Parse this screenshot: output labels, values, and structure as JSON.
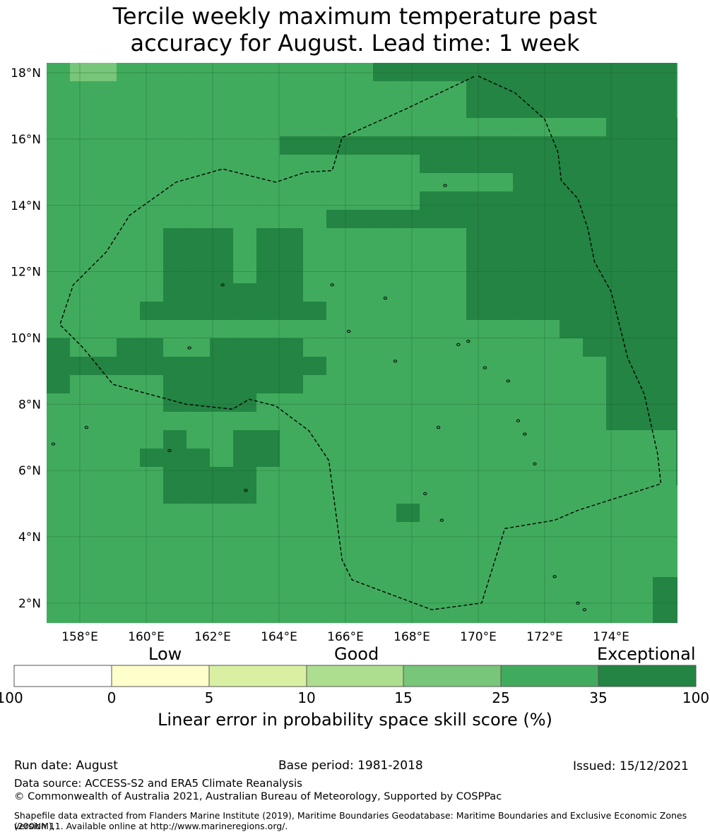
{
  "title": {
    "line1": "Tercile weekly maximum temperature past",
    "line2": "accuracy for August. Lead time: 1 week"
  },
  "map": {
    "lon_range": [
      157,
      176
    ],
    "lat_range": [
      1.4,
      18.3
    ],
    "lon_ticks": [
      {
        "value": 158,
        "label": "158°E"
      },
      {
        "value": 160,
        "label": "160°E"
      },
      {
        "value": 162,
        "label": "162°E"
      },
      {
        "value": 164,
        "label": "164°E"
      },
      {
        "value": 166,
        "label": "166°E"
      },
      {
        "value": 168,
        "label": "168°E"
      },
      {
        "value": 170,
        "label": "170°E"
      },
      {
        "value": 172,
        "label": "172°E"
      },
      {
        "value": 174,
        "label": "174°E"
      }
    ],
    "lat_ticks": [
      {
        "value": 18,
        "label": "18°N"
      },
      {
        "value": 16,
        "label": "16°N"
      },
      {
        "value": 14,
        "label": "14°N"
      },
      {
        "value": 12,
        "label": "12°N"
      },
      {
        "value": 10,
        "label": "10°N"
      },
      {
        "value": 8,
        "label": "8°N"
      },
      {
        "value": 6,
        "label": "6°N"
      },
      {
        "value": 4,
        "label": "4°N"
      },
      {
        "value": 2,
        "label": "2°N"
      }
    ],
    "grid_cell_degrees": 0.83,
    "grid_rows_north_to_south": [
      "BAABBBBBCBBBBBDDDDDDDDDDDDD",
      "BBBBBBBCBBBBBBBBBCDDDDDDDDD",
      "BBBBBBBBBBBBBBBBBBDDDDDDDDD",
      "BBBBBBBBBBBBBBBBBBBCCCCCDDDD",
      "BBBBBBBBBBDDDDDDDDDDDDDDDDDD",
      "BBBBBBBBBBBCCCCCDDDDDDDDDDDD",
      "BBBBBBBBBBBBBBBBBBBBDDDDDDDD",
      "BBBBBBBBBBBCCCCCDDDDDDDDDDDD",
      "BBBBBBBBBBBBDDDDDDDDDDDDDDDD",
      "BBBBBDDDBDDBBCCCCCDDDDDDDDDD",
      "BBBBBDDDBDDBBBBBBBDDDDDDDDDD",
      "BBBBBDDDBDDBBBBBBBDDDDDDDDDD",
      "BBBBBDDDDDDBBBBBBBDDDDDDDDDD",
      "BBBBDDDDDDDDBBBBBBDDDDDDDDDD",
      "BBBBBBBBBBBBBBBBBBBBBBDDDDDD",
      "DBBDDBBDDDDBBBBBBBBBBBBDDDDD",
      "DDDDDDDDDDDDBBBBBBBBBBBBDDDD",
      "DBBBBDDDDDDBBBBBBBBBBBBBDDDD",
      "BBBBBDDDDBBBBBBBBBBBBBBBDDDD",
      "BBBBBBBBBBBBBBBBBBBBBBBBDDDD",
      "BBBBBDBBDDBBBBBBBBBBBBBBBBBD",
      "BBBBDDDBDDBBBBBBBBBBBBBBBBBD",
      "BBBBBDDDDBBBBBBBBBBBBBBBBBBD",
      "BBBBBDDDDBBBBBBBBBBBBBBBBBBB",
      "BBBBBBBBBBBBBBBDBBBBBBBBBBBB",
      "BBBBBBBBBBBBBBBBBBBCBBBBBBBB",
      "BBBBBBBBBBBBBBBBBBCBCCCCCBBB",
      "BBBBBBBBBBCCCCBBBBBBCCCCBBBB",
      "BBBBBBBBBBCCCCBBBBBBBBBBBBDD",
      "BBBBBBBCCCCBCCBBBBBBBBBBBBDD",
      "BBBBBBBCCCCCCCBBBBBBBBBBBBDD",
      "BBBBBBBCCCCCCCBBBBBBBBBBBBDD",
      "BBBBBBBCCCCCCCBBBBBBBBBBBDDD",
      "BBBBBBBBBBCCCCBBBBBBBBBBBDDD"
    ],
    "eez_boundary": [
      [
        170.0,
        17.9
      ],
      [
        171.1,
        17.4
      ],
      [
        172.0,
        16.6
      ],
      [
        172.4,
        15.6
      ],
      [
        172.5,
        14.75
      ],
      [
        173.0,
        14.2
      ],
      [
        173.3,
        13.3
      ],
      [
        173.5,
        12.3
      ],
      [
        174.0,
        11.4
      ],
      [
        174.5,
        9.4
      ],
      [
        175.0,
        8.3
      ],
      [
        175.4,
        6.5
      ],
      [
        175.5,
        5.6
      ],
      [
        173.0,
        4.8
      ],
      [
        172.3,
        4.5
      ],
      [
        170.8,
        4.25
      ],
      [
        170.1,
        2.0
      ],
      [
        168.6,
        1.8
      ],
      [
        166.2,
        2.7
      ],
      [
        165.9,
        3.3
      ],
      [
        165.5,
        6.3
      ],
      [
        164.9,
        7.2
      ],
      [
        163.9,
        7.95
      ],
      [
        163.1,
        8.15
      ],
      [
        162.6,
        7.85
      ],
      [
        161.2,
        8.0
      ],
      [
        159.0,
        8.6
      ],
      [
        158.1,
        9.7
      ],
      [
        157.4,
        10.4
      ],
      [
        157.8,
        11.6
      ],
      [
        158.8,
        12.6
      ],
      [
        159.5,
        13.7
      ],
      [
        160.9,
        14.7
      ],
      [
        162.3,
        15.1
      ],
      [
        163.9,
        14.7
      ],
      [
        164.8,
        15.0
      ],
      [
        165.6,
        15.05
      ],
      [
        165.9,
        16.05
      ],
      [
        167.8,
        16.9
      ],
      [
        169.9,
        17.9
      ]
    ],
    "colors": {
      "A": "#78c679",
      "B": "#41ab5d",
      "C": "#41ab5d",
      "D": "#238443"
    }
  },
  "colorbar": {
    "category_labels": [
      "Low",
      "Good",
      "Exceptional"
    ],
    "bins": [
      {
        "from": "-100",
        "to": "0",
        "color": "#ffffff"
      },
      {
        "from": "0",
        "to": "5",
        "color": "#ffffcc"
      },
      {
        "from": "5",
        "to": "10",
        "color": "#d9f0a3"
      },
      {
        "from": "10",
        "to": "15",
        "color": "#addd8e"
      },
      {
        "from": "15",
        "to": "25",
        "color": "#78c679"
      },
      {
        "from": "25",
        "to": "35",
        "color": "#41ab5d"
      },
      {
        "from": "35",
        "to": "100",
        "color": "#238443"
      }
    ],
    "tick_labels": [
      "-100",
      "0",
      "5",
      "10",
      "15",
      "25",
      "35",
      "100"
    ],
    "label": "Linear error in probability space skill score (%)"
  },
  "footer": {
    "run_date": "Run date: August",
    "base_period": "Base period: 1981-2018",
    "issued": "Issued: 15/12/2021",
    "data_source": "Data source: ACCESS-S2 and ERA5 Climate Reanalysis",
    "copyright": "© Commonwealth of Australia 2021, Australian Bureau of Meteorology, Supported by COSPPac",
    "shapefile_line1": "Shapefile data extracted from Flanders Marine Institute (2019), Maritime Boundaries Geodatabase: Maritime Boundaries and Exclusive Economic Zones (200NM),",
    "shapefile_line2": "version 11. Available online at http://www.marineregions.org/."
  }
}
